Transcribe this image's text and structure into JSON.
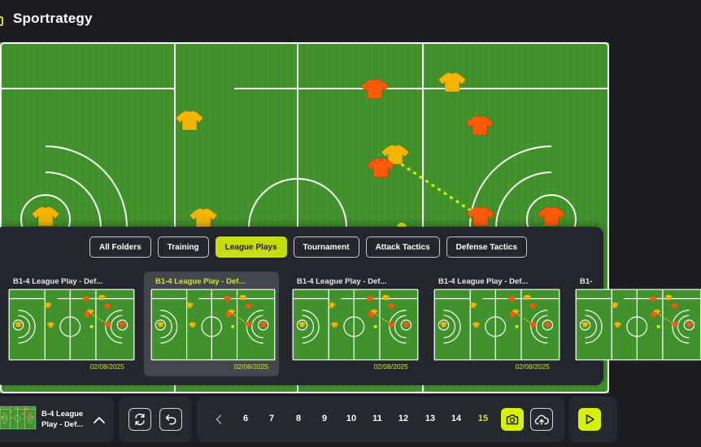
{
  "app": {
    "title": "Sportrategy"
  },
  "folders": [
    {
      "label": "All Folders",
      "active": false
    },
    {
      "label": "Training",
      "active": false
    },
    {
      "label": "League Plays",
      "active": true
    },
    {
      "label": "Tournament",
      "active": false
    },
    {
      "label": "Attack Tactics",
      "active": false
    },
    {
      "label": "Defense Tactics",
      "active": false
    }
  ],
  "plays": [
    {
      "title": "B1-4 League Play - Def...",
      "date": "02/08/2025",
      "selected": false
    },
    {
      "title": "B1-4 League Play - Def...",
      "date": "02/08/2025",
      "selected": true
    },
    {
      "title": "B1-4 League Play - Def...",
      "date": "02/08/2025",
      "selected": false
    },
    {
      "title": "B1-4 League Play - Def...",
      "date": "02/08/2025",
      "selected": false
    },
    {
      "title": "B1-",
      "date": "",
      "selected": false
    }
  ],
  "current_play": {
    "name": "B-4 League Play - Def..."
  },
  "pagination": {
    "pages": [
      "6",
      "7",
      "8",
      "9",
      "10",
      "11",
      "12",
      "13",
      "14",
      "15"
    ],
    "current": "15"
  },
  "colors": {
    "accent": "#d7f20a",
    "field": "#3f8f2a",
    "team_yellow": "#f5b400",
    "team_orange": "#ff5a0a"
  },
  "icons": {
    "logo": "logo-icon",
    "collapse": "chevron-up-icon",
    "swap": "swap-icon",
    "undo": "undo-icon",
    "prev": "chevron-left-icon",
    "next": "chevron-right-icon",
    "camera": "camera-icon",
    "upload": "cloud-upload-icon",
    "play": "play-icon"
  }
}
